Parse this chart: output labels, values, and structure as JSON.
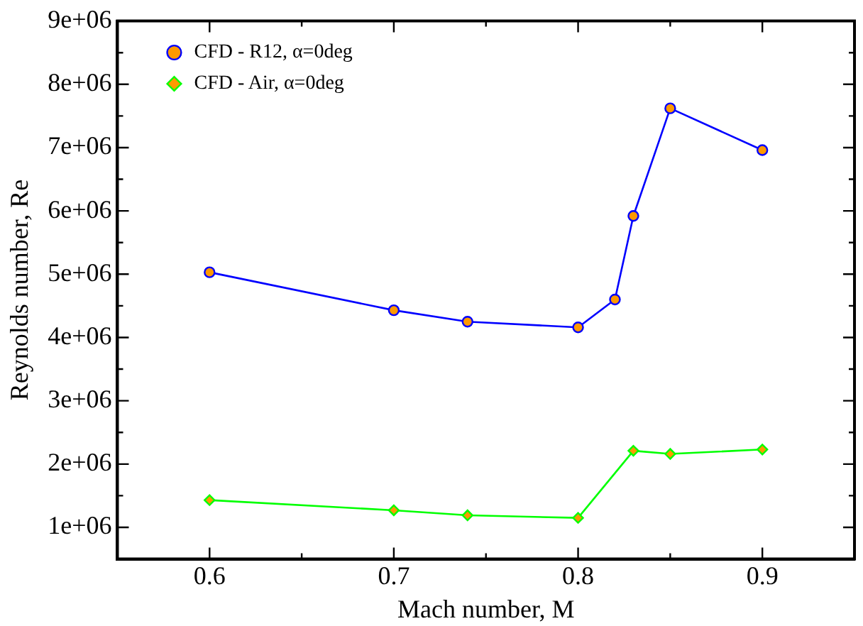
{
  "chart_data": {
    "type": "line",
    "xlabel": "Mach number, M",
    "ylabel": "Reynolds number, Re",
    "xlim": [
      0.55,
      0.95
    ],
    "xticks": [
      {
        "value": 0.6,
        "label": "0.6"
      },
      {
        "value": 0.65,
        "label": null
      },
      {
        "value": 0.7,
        "label": "0.7"
      },
      {
        "value": 0.75,
        "label": null
      },
      {
        "value": 0.8,
        "label": "0.8"
      },
      {
        "value": 0.85,
        "label": null
      },
      {
        "value": 0.9,
        "label": "0.9"
      }
    ],
    "ylim": [
      500000,
      9000000
    ],
    "yticks": [
      {
        "value": 1000000,
        "label": "1e+06"
      },
      {
        "value": 1500000,
        "label": null
      },
      {
        "value": 2000000,
        "label": "2e+06"
      },
      {
        "value": 2500000,
        "label": null
      },
      {
        "value": 3000000,
        "label": "3e+06"
      },
      {
        "value": 3500000,
        "label": null
      },
      {
        "value": 4000000,
        "label": "4e+06"
      },
      {
        "value": 4500000,
        "label": null
      },
      {
        "value": 5000000,
        "label": "5e+06"
      },
      {
        "value": 5500000,
        "label": null
      },
      {
        "value": 6000000,
        "label": "6e+06"
      },
      {
        "value": 6500000,
        "label": null
      },
      {
        "value": 7000000,
        "label": "7e+06"
      },
      {
        "value": 7500000,
        "label": null
      },
      {
        "value": 8000000,
        "label": "8e+06"
      },
      {
        "value": 8500000,
        "label": null
      },
      {
        "value": 9000000,
        "label": "9e+06"
      }
    ],
    "grid": false,
    "legend": "top left",
    "line_style": "solid",
    "x": [
      0.6,
      0.7,
      0.74,
      0.8,
      0.82,
      0.83,
      0.85,
      0.9
    ],
    "series": [
      {
        "name": "CFD - R12, α=0deg",
        "color": "#0000ff",
        "marker": "circle",
        "values": [
          5030000,
          4430000,
          4250000,
          4160000,
          4600000,
          5920000,
          7620000,
          6960000
        ]
      },
      {
        "name": "CFD - Air, α=0deg",
        "color": "#00ff00",
        "marker": "diamond",
        "x": [
          0.6,
          0.7,
          0.74,
          0.8,
          0.83,
          0.85,
          0.9
        ],
        "values": [
          1430000,
          1270000,
          1190000,
          1150000,
          2210000,
          2160000,
          2230000
        ]
      }
    ]
  }
}
